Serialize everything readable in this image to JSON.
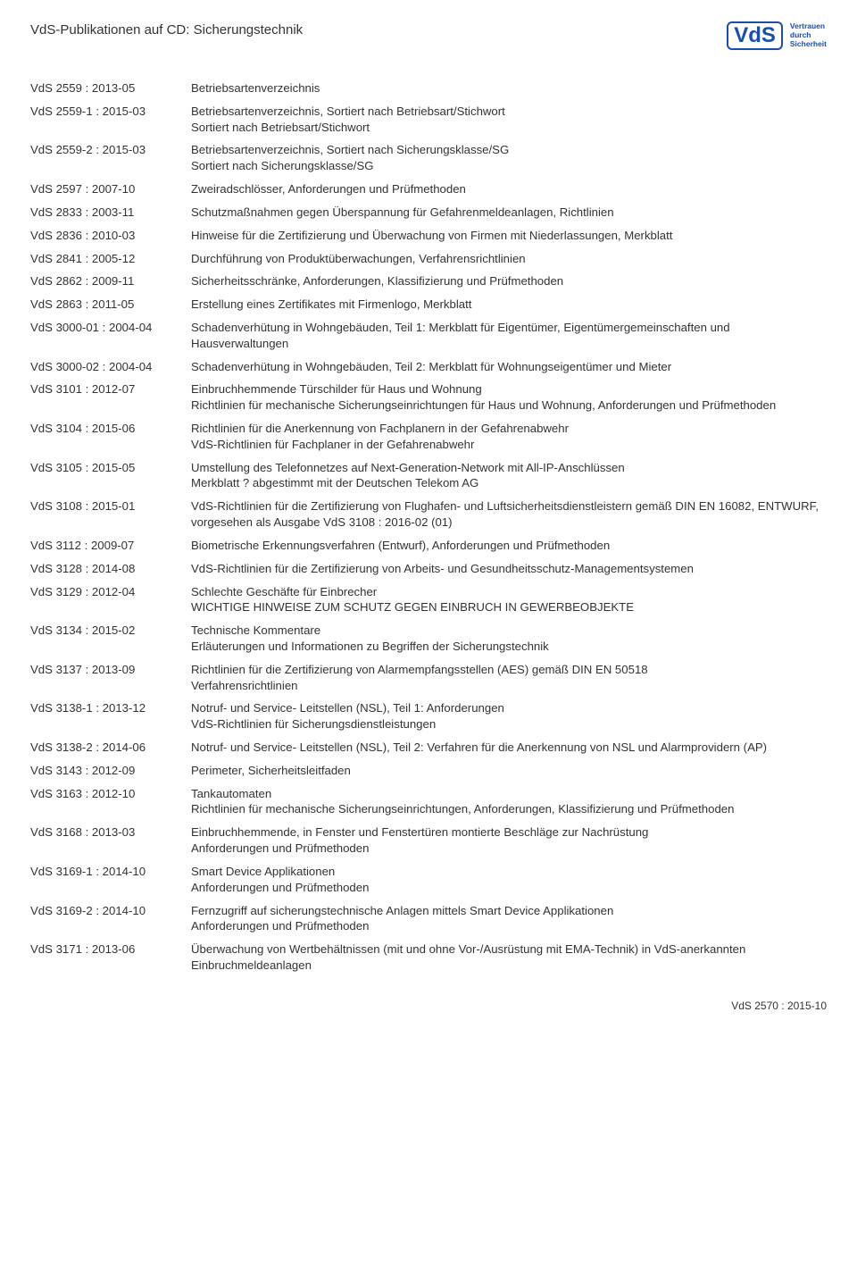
{
  "header": {
    "title": "VdS-Publikationen auf CD: Sicherungstechnik",
    "logo_text": "VdS",
    "logo_tag_1": "Vertrauen",
    "logo_tag_2": "durch",
    "logo_tag_3": "Sicherheit"
  },
  "footer": "VdS 2570 : 2015-10",
  "entries": [
    {
      "code": "VdS 2559 : 2013-05",
      "lines": [
        "Betriebsartenverzeichnis"
      ]
    },
    {
      "code": "VdS 2559-1 : 2015-03",
      "lines": [
        "Betriebsartenverzeichnis, Sortiert nach Betriebsart/Stichwort",
        "Sortiert nach Betriebsart/Stichwort"
      ]
    },
    {
      "code": "VdS 2559-2 : 2015-03",
      "lines": [
        "Betriebsartenverzeichnis, Sortiert nach Sicherungsklasse/SG",
        "Sortiert nach Sicherungsklasse/SG"
      ]
    },
    {
      "code": "VdS 2597 : 2007-10",
      "lines": [
        "Zweiradschlösser, Anforderungen und Prüfmethoden"
      ]
    },
    {
      "code": "VdS 2833 : 2003-11",
      "lines": [
        "Schutzmaßnahmen gegen Überspannung für Gefahrenmeldeanlagen, Richtlinien"
      ]
    },
    {
      "code": "VdS 2836 : 2010-03",
      "lines": [
        "Hinweise für die Zertifizierung und Überwachung von Firmen mit Niederlassungen, Merkblatt"
      ]
    },
    {
      "code": "VdS 2841 : 2005-12",
      "lines": [
        "Durchführung von Produktüberwachungen, Verfahrensrichtlinien"
      ]
    },
    {
      "code": "VdS 2862 : 2009-11",
      "lines": [
        "Sicherheitsschränke, Anforderungen, Klassifizierung und Prüfmethoden"
      ]
    },
    {
      "code": "VdS 2863 : 2011-05",
      "lines": [
        "Erstellung eines Zertifikates mit Firmenlogo, Merkblatt"
      ]
    },
    {
      "code": "VdS 3000-01 : 2004-04",
      "lines": [
        "Schadenverhütung in Wohngebäuden, Teil 1: Merkblatt für Eigentümer, Eigentümergemeinschaften und Hausverwaltungen"
      ]
    },
    {
      "code": "VdS 3000-02 : 2004-04",
      "lines": [
        "Schadenverhütung in Wohngebäuden, Teil 2: Merkblatt für Wohnungseigentümer und Mieter"
      ]
    },
    {
      "code": "VdS 3101 : 2012-07",
      "lines": [
        "Einbruchhemmende Türschilder für Haus und Wohnung",
        "Richtlinien für mechanische Sicherungseinrichtungen für Haus und Wohnung, Anforderungen und Prüfmethoden"
      ]
    },
    {
      "code": "VdS 3104 : 2015-06",
      "lines": [
        "Richtlinien für die Anerkennung von Fachplanern in der Gefahrenabwehr",
        "VdS-Richtlinien für Fachplaner in der Gefahrenabwehr"
      ]
    },
    {
      "code": "VdS 3105 : 2015-05",
      "lines": [
        "Umstellung des Telefonnetzes auf Next-Generation-Network mit All-IP-Anschlüssen",
        "Merkblatt ? abgestimmt mit der Deutschen Telekom AG"
      ]
    },
    {
      "code": "VdS 3108 : 2015-01",
      "lines": [
        "VdS-Richtlinien für die Zertifizierung von Flughafen- und Luftsicherheitsdienstleistern gemäß DIN EN 16082, ENTWURF, vorgesehen als Ausgabe VdS 3108 : 2016-02 (01)"
      ]
    },
    {
      "code": "VdS 3112 : 2009-07",
      "lines": [
        "Biometrische Erkennungsverfahren (Entwurf), Anforderungen und Prüfmethoden"
      ]
    },
    {
      "code": "VdS 3128 : 2014-08",
      "lines": [
        "VdS-Richtlinien für die Zertifizierung von Arbeits- und Gesundheitsschutz-Managementsystemen"
      ]
    },
    {
      "code": "VdS 3129 : 2012-04",
      "lines": [
        "Schlechte Geschäfte für Einbrecher",
        "WICHTIGE HINWEISE ZUM SCHUTZ GEGEN EINBRUCH IN GEWERBEOBJEKTE"
      ]
    },
    {
      "code": "VdS 3134 : 2015-02",
      "lines": [
        "Technische Kommentare",
        "Erläuterungen und Informationen zu Begriffen der Sicherungstechnik"
      ]
    },
    {
      "code": "VdS 3137 : 2013-09",
      "lines": [
        "Richtlinien für die Zertifizierung von Alarmempfangsstellen (AES) gemäß DIN EN 50518",
        "Verfahrensrichtlinien"
      ]
    },
    {
      "code": "VdS 3138-1 : 2013-12",
      "lines": [
        "Notruf- und Service- Leitstellen (NSL), Teil 1: Anforderungen",
        "VdS-Richtlinien für Sicherungsdienstleistungen"
      ]
    },
    {
      "code": "VdS 3138-2 : 2014-06",
      "lines": [
        "Notruf- und Service- Leitstellen (NSL), Teil 2: Verfahren für die Anerkennung von NSL und Alarmprovidern (AP)"
      ]
    },
    {
      "code": "VdS 3143 : 2012-09",
      "lines": [
        "Perimeter, Sicherheitsleitfaden"
      ]
    },
    {
      "code": "VdS 3163 : 2012-10",
      "lines": [
        "Tankautomaten",
        "Richtlinien für mechanische Sicherungseinrichtungen, Anforderungen, Klassifizierung und Prüfmethoden"
      ]
    },
    {
      "code": "VdS 3168 : 2013-03",
      "lines": [
        "Einbruchhemmende, in Fenster und Fenstertüren montierte Beschläge zur Nachrüstung",
        "Anforderungen und Prüfmethoden"
      ]
    },
    {
      "code": "VdS 3169-1 : 2014-10",
      "lines": [
        "Smart Device Applikationen",
        "Anforderungen und Prüfmethoden"
      ]
    },
    {
      "code": "VdS 3169-2 : 2014-10",
      "lines": [
        "Fernzugriff auf sicherungstechnische Anlagen mittels Smart Device Applikationen",
        "Anforderungen und Prüfmethoden"
      ]
    },
    {
      "code": "VdS 3171 : 2013-06",
      "lines": [
        "Überwachung von Wertbehältnissen (mit und ohne Vor-/Ausrüstung mit EMA-Technik) in VdS-anerkannten Einbruchmeldeanlagen"
      ]
    }
  ]
}
